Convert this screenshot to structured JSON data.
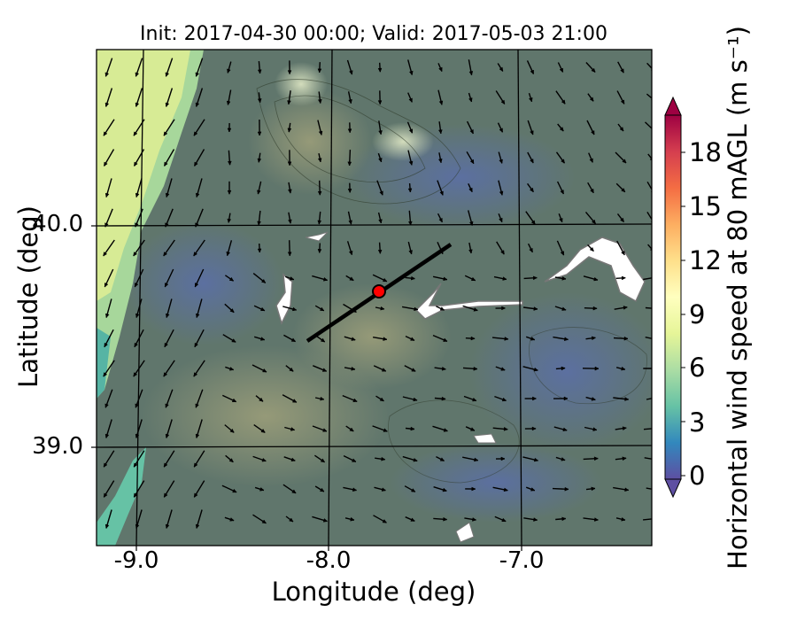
{
  "title": "Init: 2017-04-30 00:00; Valid: 2017-05-03 21:00",
  "xlabel": "Longitude (deg)",
  "ylabel": "Latitude (deg)",
  "colorbar": {
    "label": "Horizontal wind speed at 80 mAGL (m s⁻¹)",
    "ticks": [
      "0",
      "3",
      "6",
      "9",
      "12",
      "15",
      "18"
    ],
    "range": [
      0,
      20
    ],
    "extend": "both",
    "colormap": "Spectral_r"
  },
  "x_ticks": [
    "-9.0",
    "-8.0",
    "-7.0"
  ],
  "y_ticks": [
    "40.0",
    "39.0"
  ],
  "map": {
    "lon_range": [
      -9.25,
      -6.35
    ],
    "lat_range": [
      38.55,
      40.8
    ],
    "gridlines": true,
    "cross_section": {
      "start": [
        -8.12,
        39.47
      ],
      "end": [
        -7.38,
        39.91
      ]
    },
    "marker": {
      "lon": -7.75,
      "lat": 39.69,
      "color": "#ff0000"
    },
    "overlay": "terrain contours + wind vectors"
  }
}
